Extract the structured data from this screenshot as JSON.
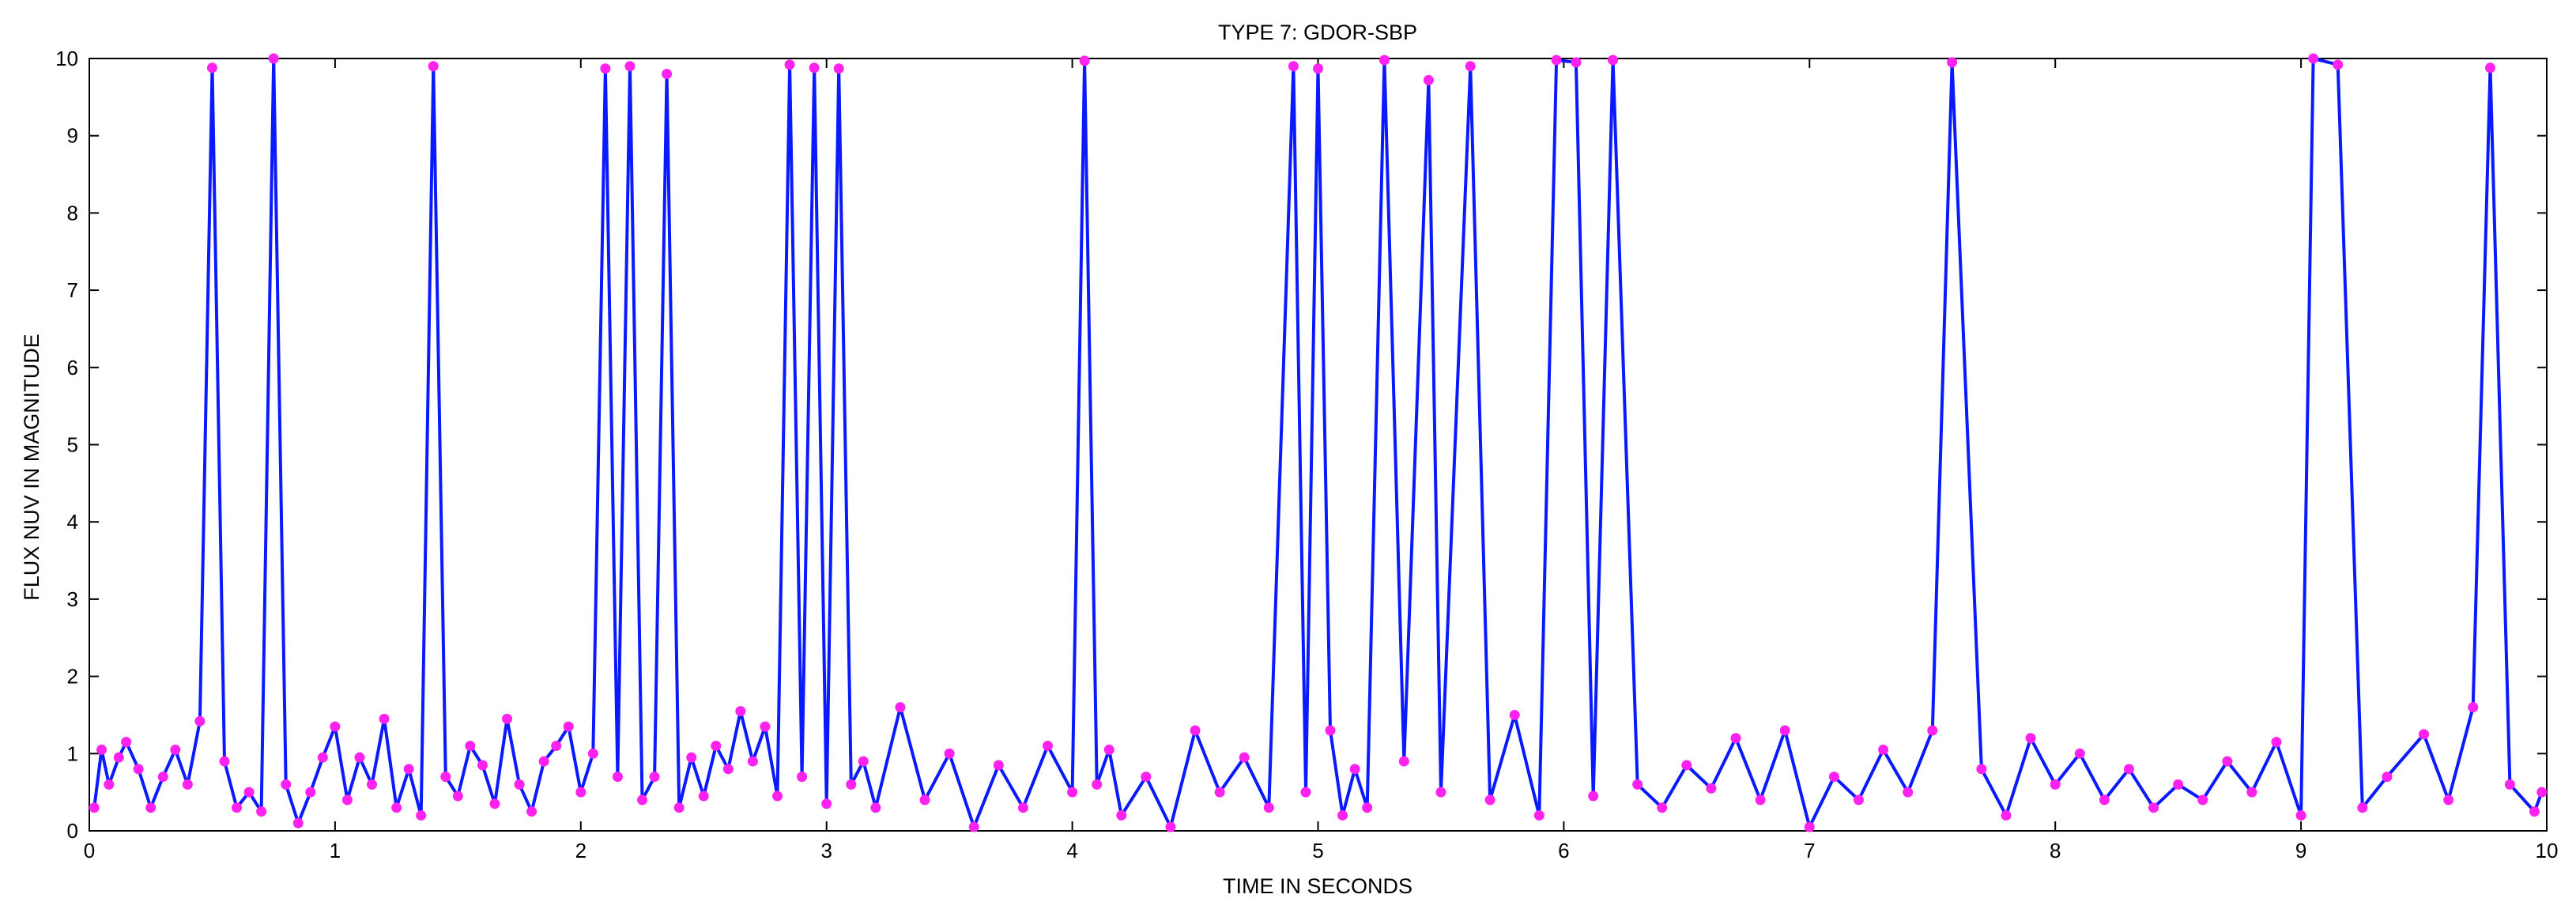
{
  "chart_data": {
    "type": "line",
    "title": "TYPE 7: GDOR-SBP",
    "xlabel": "TIME IN SECONDS",
    "ylabel": "FLUX NUV IN MAGNITUDE",
    "xlim": [
      0,
      10
    ],
    "ylim": [
      0,
      10
    ],
    "xticks": [
      0,
      1,
      2,
      3,
      4,
      5,
      6,
      7,
      8,
      9,
      10
    ],
    "yticks": [
      0,
      1,
      2,
      3,
      4,
      5,
      6,
      7,
      8,
      9,
      10
    ],
    "grid": false,
    "legend": "none",
    "colors": {
      "line": "#0a1aff",
      "marker": "#ff22ee",
      "axes": "#000000"
    },
    "series": [
      {
        "marker": "circle",
        "x": [
          0.02,
          0.05,
          0.08,
          0.12,
          0.15,
          0.2,
          0.25,
          0.3,
          0.35,
          0.4,
          0.45,
          0.5,
          0.55,
          0.6,
          0.65,
          0.7,
          0.75,
          0.8,
          0.85,
          0.9,
          0.95,
          1.0,
          1.05,
          1.1,
          1.15,
          1.2,
          1.25,
          1.3,
          1.35,
          1.4,
          1.45,
          1.5,
          1.55,
          1.6,
          1.65,
          1.7,
          1.75,
          1.8,
          1.85,
          1.9,
          1.95,
          2.0,
          2.05,
          2.1,
          2.15,
          2.2,
          2.25,
          2.3,
          2.35,
          2.4,
          2.45,
          2.5,
          2.55,
          2.6,
          2.65,
          2.7,
          2.75,
          2.8,
          2.85,
          2.9,
          2.95,
          3.0,
          3.05,
          3.1,
          3.15,
          3.2,
          3.3,
          3.4,
          3.5,
          3.6,
          3.7,
          3.8,
          3.9,
          4.0,
          4.05,
          4.1,
          4.15,
          4.2,
          4.3,
          4.4,
          4.5,
          4.6,
          4.7,
          4.8,
          4.9,
          4.95,
          5.0,
          5.05,
          5.1,
          5.15,
          5.2,
          5.27,
          5.35,
          5.45,
          5.5,
          5.62,
          5.7,
          5.8,
          5.9,
          5.97,
          6.05,
          6.12,
          6.2,
          6.3,
          6.4,
          6.5,
          6.6,
          6.7,
          6.8,
          6.9,
          7.0,
          7.1,
          7.2,
          7.3,
          7.4,
          7.5,
          7.58,
          7.7,
          7.8,
          7.9,
          8.0,
          8.1,
          8.2,
          8.3,
          8.4,
          8.5,
          8.6,
          8.7,
          8.8,
          8.9,
          9.0,
          9.05,
          9.15,
          9.25,
          9.35,
          9.5,
          9.6,
          9.7,
          9.77,
          9.85,
          9.95,
          9.98
        ],
        "y": [
          0.3,
          1.05,
          0.6,
          0.95,
          1.15,
          0.8,
          0.3,
          0.7,
          1.05,
          0.6,
          1.42,
          9.88,
          0.9,
          0.3,
          0.5,
          0.25,
          10.0,
          0.6,
          0.1,
          0.5,
          0.95,
          1.35,
          0.4,
          0.95,
          0.6,
          1.45,
          0.3,
          0.8,
          0.2,
          9.9,
          0.7,
          0.45,
          1.1,
          0.85,
          0.35,
          1.45,
          0.6,
          0.25,
          0.9,
          1.1,
          1.35,
          0.5,
          1.0,
          9.87,
          0.7,
          9.9,
          0.4,
          0.7,
          9.8,
          0.3,
          0.95,
          0.45,
          1.1,
          0.8,
          1.55,
          0.9,
          1.35,
          0.45,
          9.92,
          0.7,
          9.88,
          0.35,
          9.87,
          0.6,
          0.9,
          0.3,
          1.6,
          0.4,
          1.0,
          0.05,
          0.85,
          0.3,
          1.1,
          0.5,
          9.97,
          0.6,
          1.05,
          0.2,
          0.7,
          0.05,
          1.3,
          0.5,
          0.95,
          0.3,
          9.9,
          0.5,
          9.87,
          1.3,
          0.2,
          0.8,
          0.3,
          9.98,
          0.9,
          9.72,
          0.5,
          9.9,
          0.4,
          1.5,
          0.2,
          9.98,
          9.95,
          0.45,
          9.98,
          0.6,
          0.3,
          0.85,
          0.55,
          1.2,
          0.4,
          1.3,
          0.05,
          0.7,
          0.4,
          1.05,
          0.5,
          1.3,
          9.95,
          0.8,
          0.2,
          1.2,
          0.6,
          1.0,
          0.4,
          0.8,
          0.3,
          0.6,
          0.4,
          0.9,
          0.5,
          1.15,
          0.2,
          10.0,
          9.92,
          0.3,
          0.7,
          1.25,
          0.4,
          1.6,
          9.88,
          0.6,
          0.25,
          0.5
        ]
      }
    ]
  }
}
